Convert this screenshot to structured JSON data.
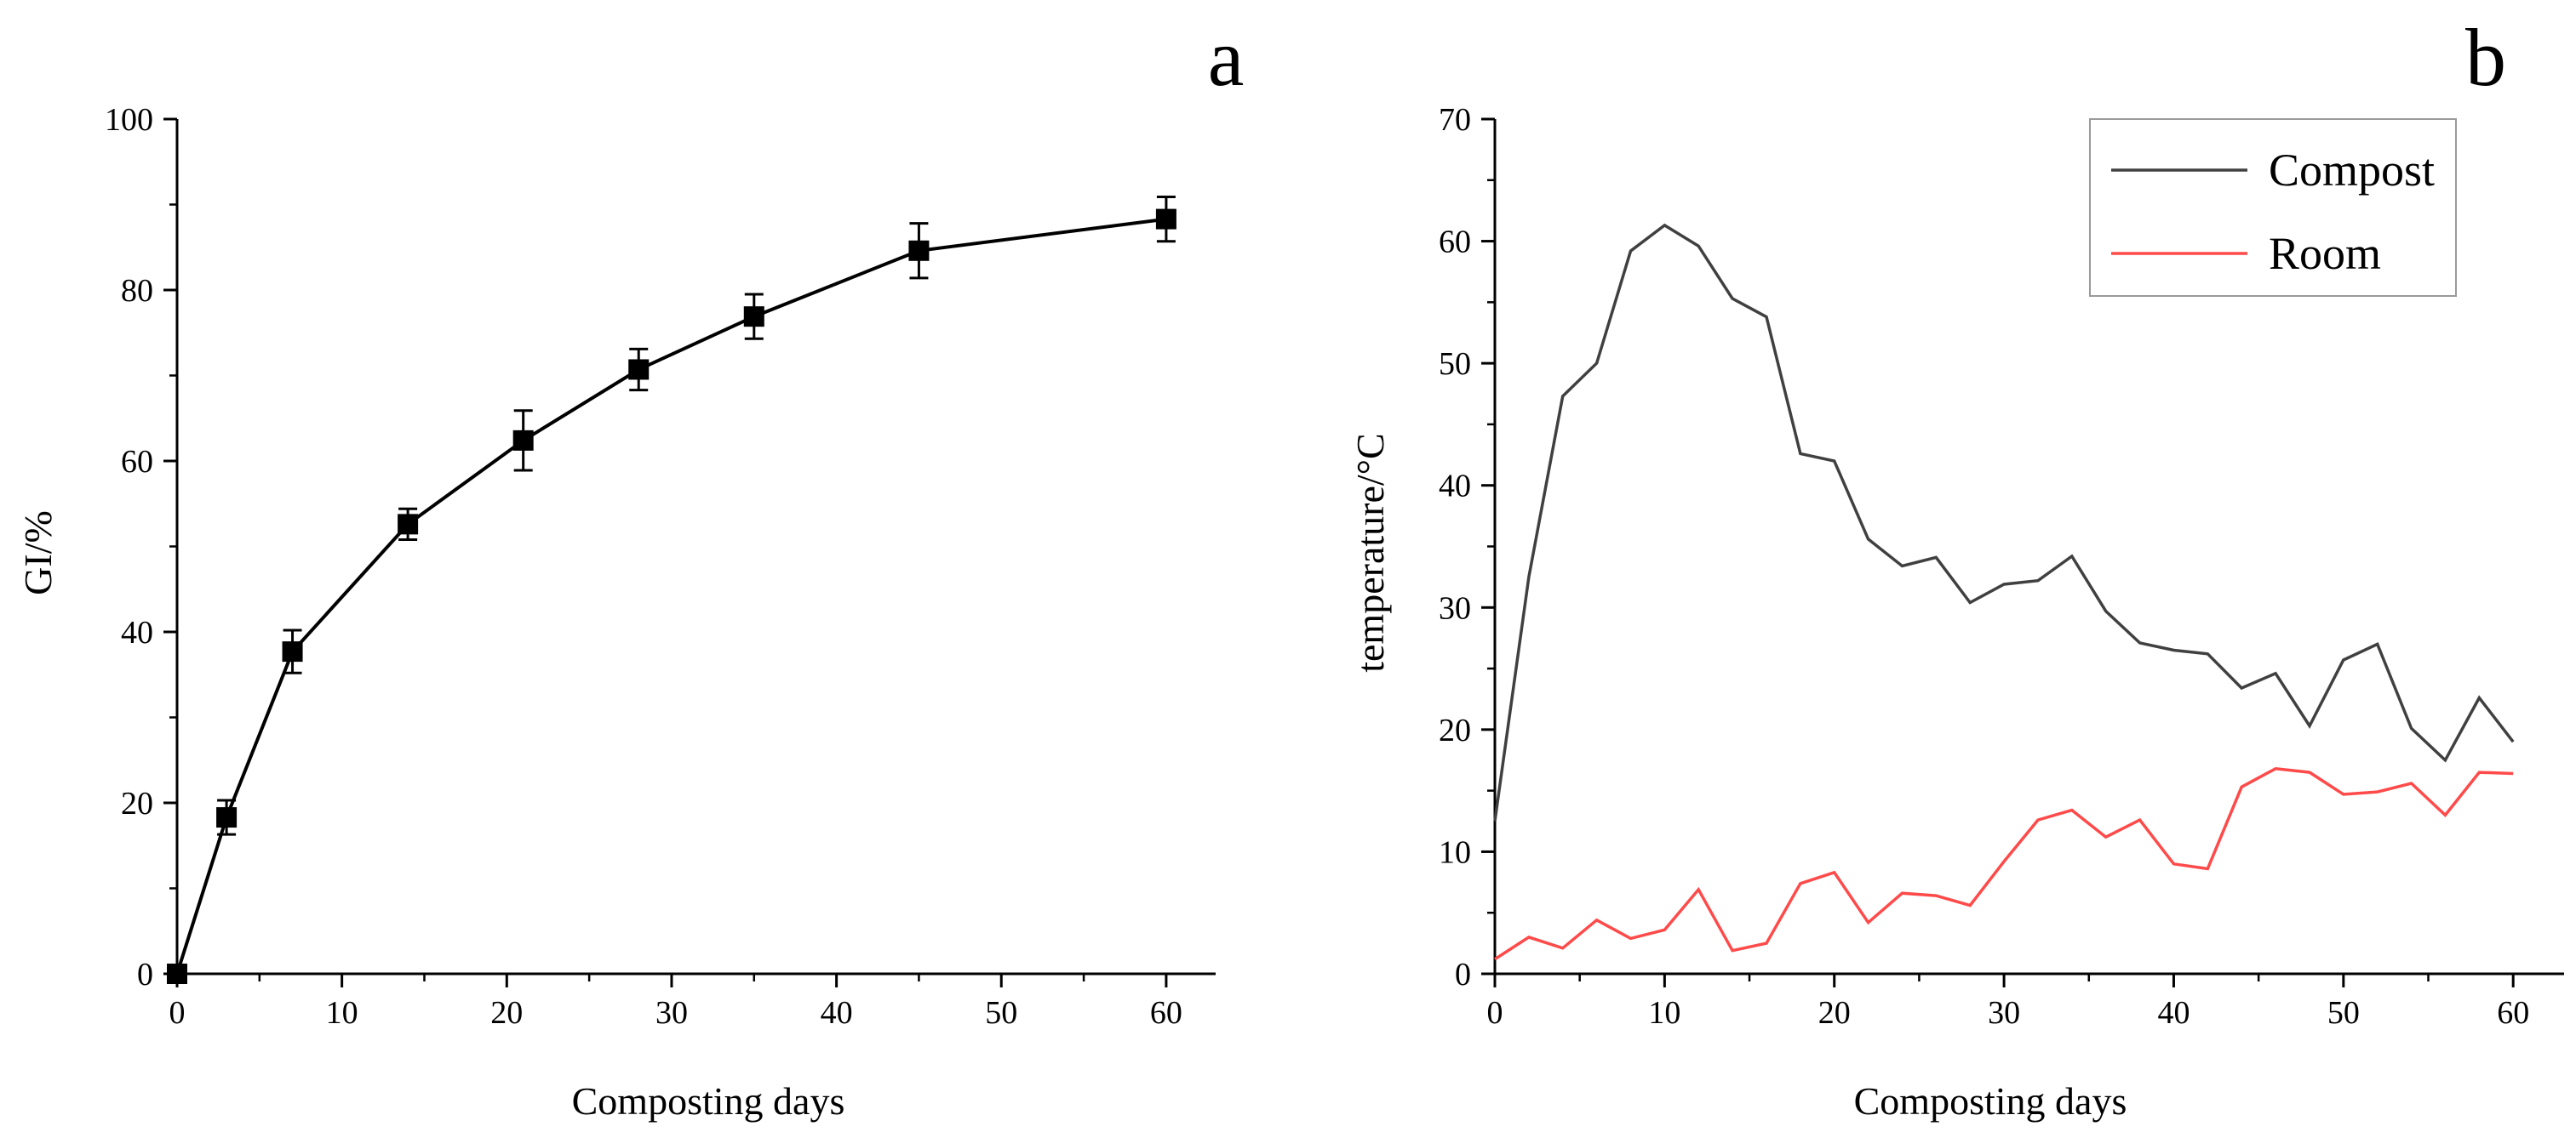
{
  "chart_data": [
    {
      "type": "line",
      "panel": "a",
      "xlabel": "Composting days",
      "ylabel": "GI/%",
      "xlim": [
        0,
        63
      ],
      "ylim": [
        0,
        100
      ],
      "xticks": [
        0,
        10,
        20,
        30,
        40,
        50,
        60
      ],
      "yticks": [
        0,
        20,
        40,
        60,
        80,
        100
      ],
      "marker": "square",
      "error_bars": true,
      "series": [
        {
          "name": "GI",
          "color": "#000000",
          "x": [
            0,
            3,
            7,
            14,
            21,
            28,
            35,
            45,
            60
          ],
          "values": [
            0,
            18.3,
            37.7,
            52.6,
            62.4,
            70.7,
            76.9,
            84.6,
            88.3
          ],
          "errors": [
            0,
            2.0,
            2.5,
            1.8,
            3.5,
            2.4,
            2.6,
            3.2,
            2.6
          ]
        }
      ]
    },
    {
      "type": "line",
      "panel": "b",
      "xlabel": "Composting days",
      "ylabel": "temperature/°C",
      "xlim": [
        0,
        63
      ],
      "ylim": [
        0,
        70
      ],
      "xticks": [
        0,
        10,
        20,
        30,
        40,
        50,
        60
      ],
      "yticks": [
        0,
        10,
        20,
        30,
        40,
        50,
        60,
        70
      ],
      "legend_position": "top-right",
      "series": [
        {
          "name": "Compost",
          "color": "#404040",
          "x": [
            0,
            2,
            4,
            6,
            8,
            10,
            12,
            14,
            16,
            18,
            20,
            22,
            24,
            26,
            28,
            30,
            32,
            34,
            36,
            38,
            40,
            42,
            44,
            46,
            48,
            50,
            52,
            54,
            56,
            58,
            60
          ],
          "values": [
            12.5,
            32.5,
            47.3,
            50.0,
            59.2,
            61.3,
            59.6,
            55.3,
            53.8,
            42.6,
            42.0,
            35.6,
            33.4,
            34.1,
            30.4,
            31.9,
            32.2,
            34.2,
            29.7,
            27.1,
            26.5,
            26.2,
            23.4,
            24.6,
            20.3,
            25.7,
            27.0,
            20.1,
            17.5,
            22.6,
            19.0
          ]
        },
        {
          "name": "Room",
          "color": "#ff4a4a",
          "x": [
            0,
            2,
            4,
            6,
            8,
            10,
            12,
            14,
            16,
            18,
            20,
            22,
            24,
            26,
            28,
            30,
            32,
            34,
            36,
            38,
            40,
            42,
            44,
            46,
            48,
            50,
            52,
            54,
            56,
            58,
            60
          ],
          "values": [
            1.2,
            3.0,
            2.1,
            4.4,
            2.9,
            3.6,
            6.9,
            1.9,
            2.5,
            7.4,
            8.3,
            4.2,
            6.6,
            6.4,
            5.6,
            9.2,
            12.6,
            13.4,
            11.2,
            12.6,
            9.0,
            8.6,
            15.3,
            16.8,
            16.5,
            14.7,
            14.9,
            15.6,
            13.0,
            16.5,
            16.4
          ]
        }
      ]
    }
  ]
}
